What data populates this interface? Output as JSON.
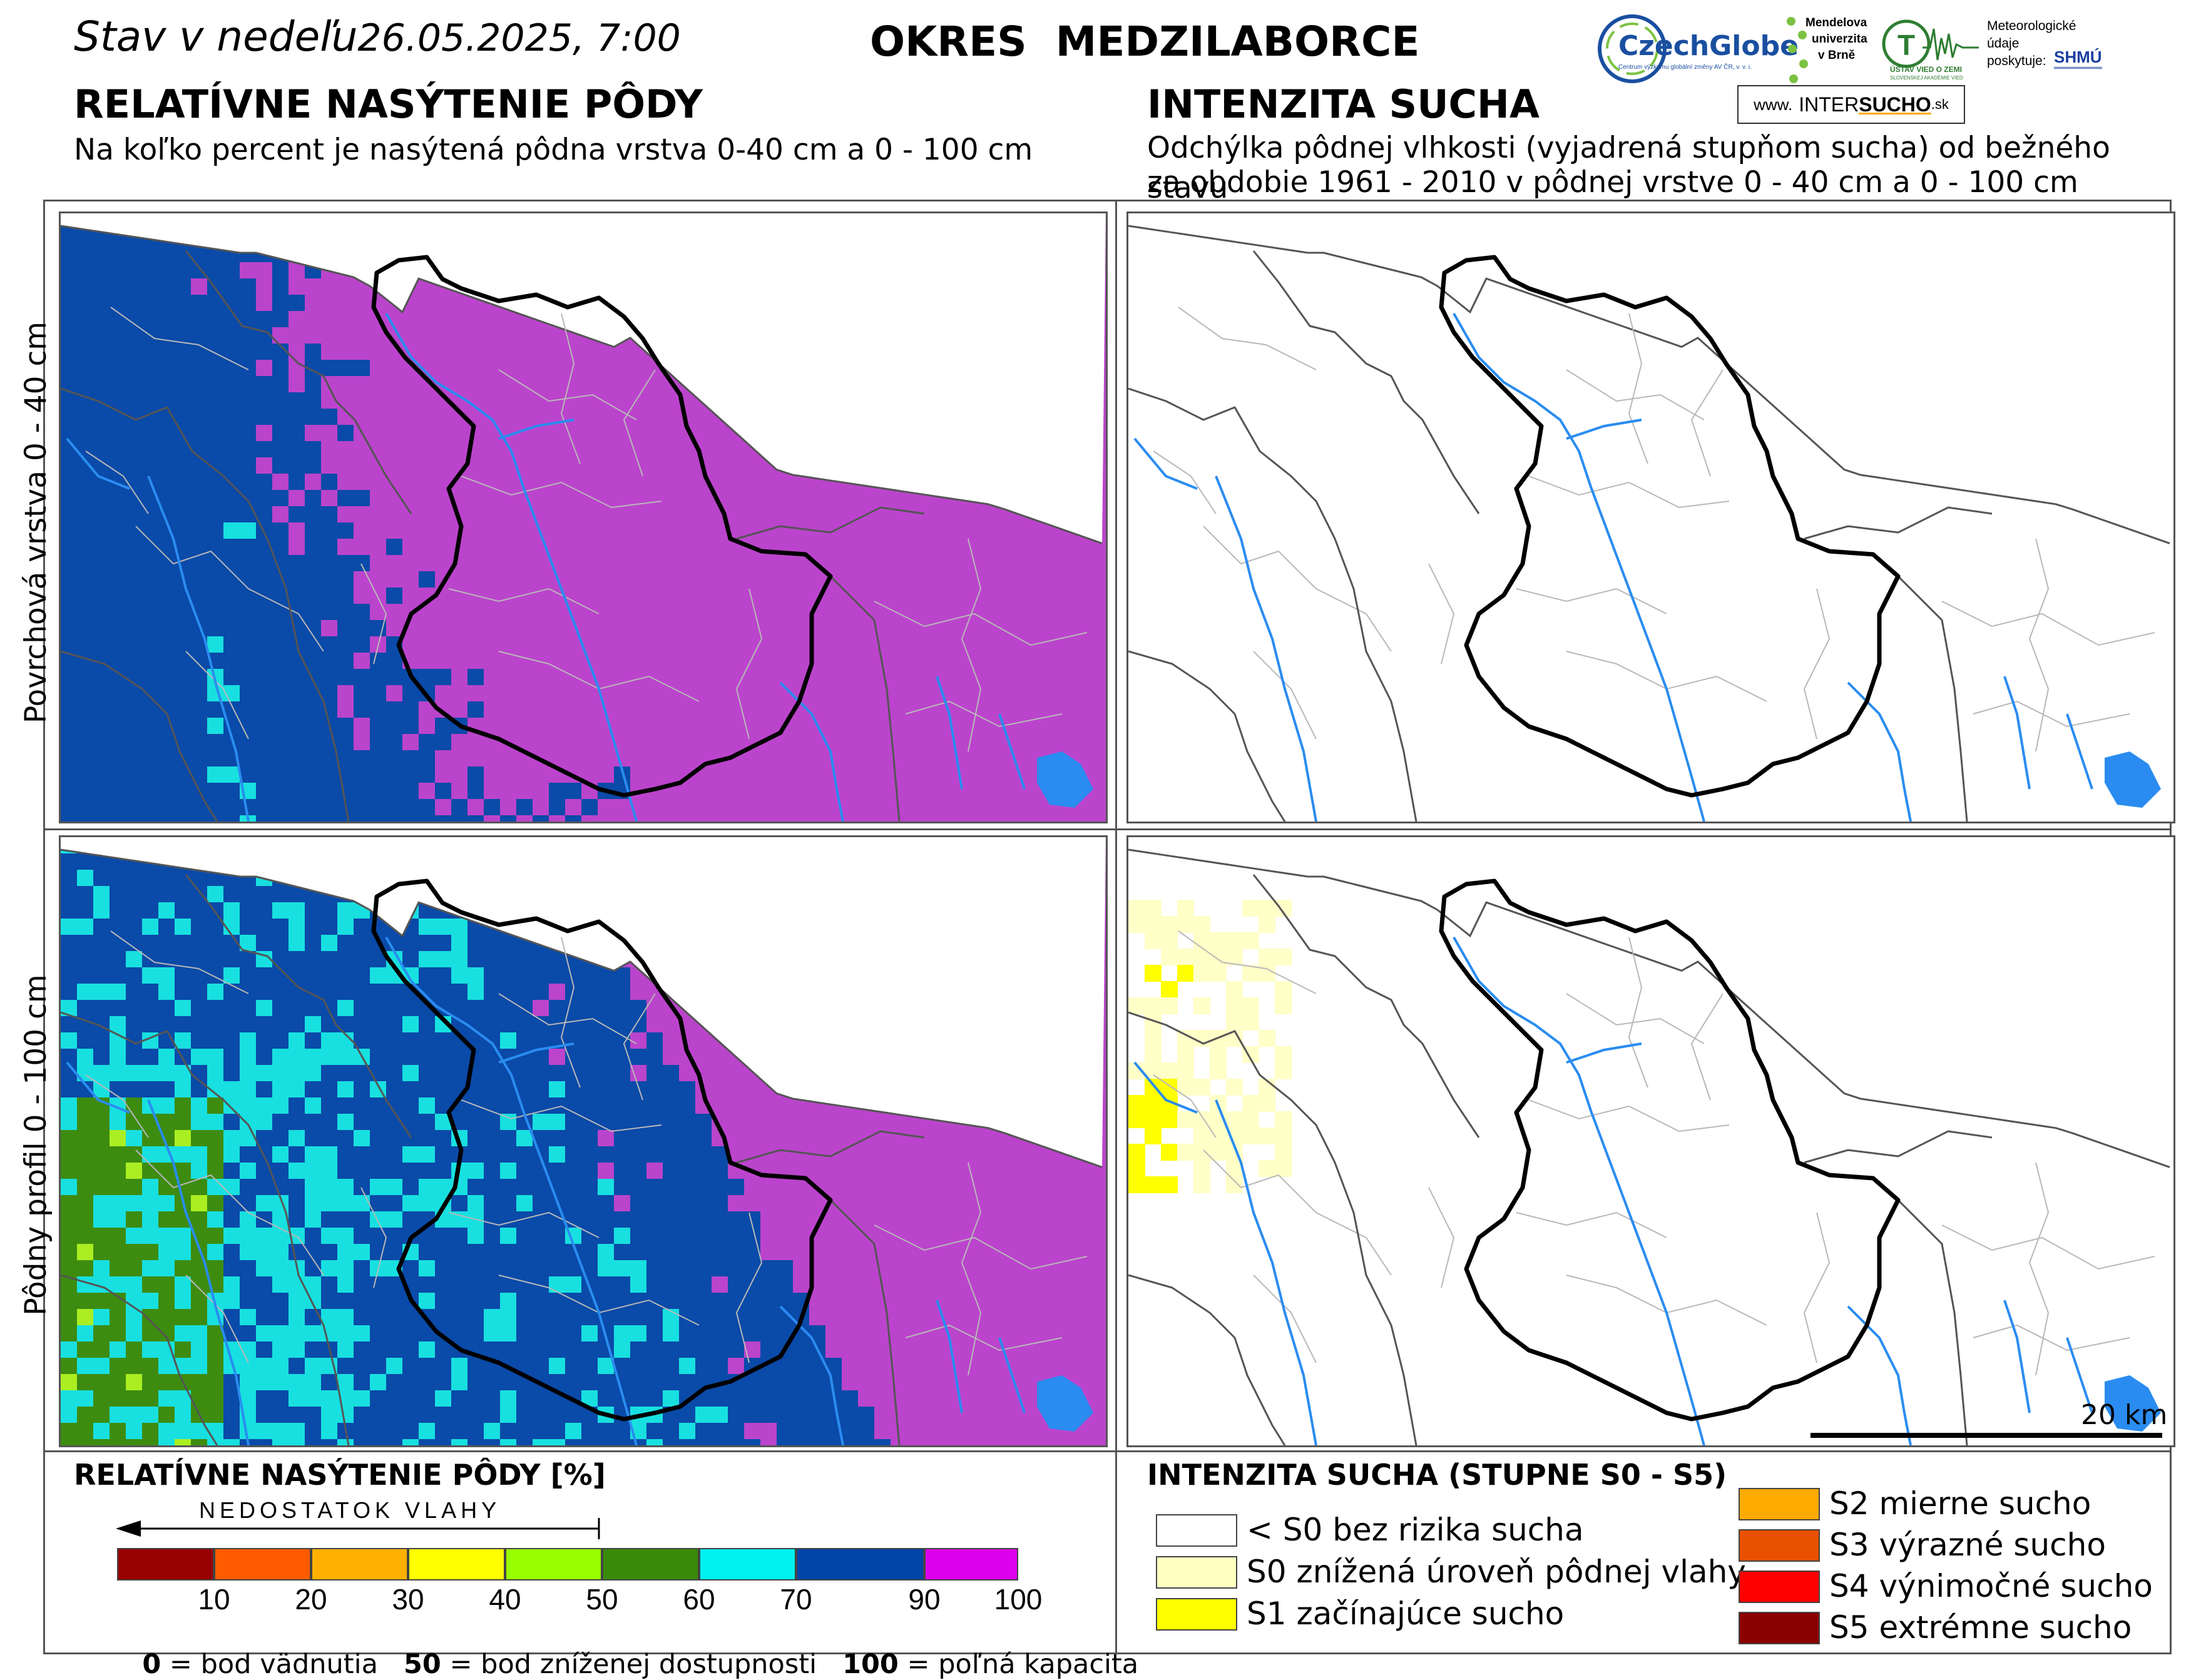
{
  "header": {
    "date_prefix": "Stav v nedeľu",
    "date_value": "26.05.2025, 7:00",
    "district": "OKRES  MEDZILABORCE",
    "left_title": "RELATÍVNE NASÝTENIE PÔDY",
    "left_subtitle": "Na koľko percent je nasýtená pôdna vrstva 0-40 cm a 0 - 100 cm",
    "right_title": "INTENZITA SUCHA",
    "right_subtitle_1": "Odchýlka pôdnej vlhkosti (vyjadrená stupňom sucha) od bežného stavu",
    "right_subtitle_2": "za obdobie 1961 - 2010 v pôdnej vrstve 0 - 40 cm a 0 - 100 cm"
  },
  "logos": {
    "czechglobe": "CzechGlobe",
    "czechglobe_sub": "Centrum výzkumu globální změny AV ČR, v. v. i.",
    "mendel_1": "Mendelova",
    "mendel_2": "univerzita",
    "mendel_3": "v Brně",
    "uvz": "ÚSTAV VIED O ZEMI",
    "uvz_sub": "SLOVENSKEJ AKADÉMIE VIED",
    "meteo_1": "Meteorologické",
    "meteo_2": "údaje",
    "meteo_3": "poskytuje:",
    "shmu": "SHMÚ",
    "www_prefix": "www.",
    "www_inter": "INTER",
    "www_sucho": "SUCHO",
    "www_suffix": ".sk"
  },
  "rows": {
    "top_label": "Povrchová vrstva 0 - 40 cm",
    "bottom_label": "Pôdny profil 0 - 100 cm"
  },
  "scalebar": {
    "label": "20 km"
  },
  "saturation_legend": {
    "title": "RELATÍVNE NASÝTENIE PÔDY [%]",
    "arrow_label": "NEDOSTATOK VLAHY",
    "classes": [
      {
        "from": 0,
        "to": 10,
        "color": "#990000"
      },
      {
        "from": 10,
        "to": 20,
        "color": "#ff5a00"
      },
      {
        "from": 20,
        "to": 30,
        "color": "#ffb000"
      },
      {
        "from": 30,
        "to": 40,
        "color": "#ffff00"
      },
      {
        "from": 40,
        "to": 50,
        "color": "#99ff00"
      },
      {
        "from": 50,
        "to": 60,
        "color": "#3a8a0a"
      },
      {
        "from": 60,
        "to": 70,
        "color": "#00f0f0"
      },
      {
        "from": 70,
        "to": 90,
        "color": "#0044aa"
      },
      {
        "from": 90,
        "to": 100,
        "color": "#dd00ee"
      }
    ],
    "ticks": [
      "10",
      "20",
      "30",
      "40",
      "50",
      "60",
      "70",
      "90",
      "100"
    ],
    "note_0": "0",
    "note_0_text": " = bod vädnutia",
    "note_50": "50",
    "note_50_text": " = bod zníženej dostupnosti",
    "note_100": "100",
    "note_100_text": " = poľná kapacita"
  },
  "drought_legend": {
    "title": "INTENZITA SUCHA (STUPNE S0 - S5)",
    "items": [
      {
        "label": "< S0 bez rizika sucha",
        "color": "#ffffff"
      },
      {
        "label": "S0 znížená úroveň pôdnej vlahy",
        "color": "#ffffc0"
      },
      {
        "label": "S1 začínajúce sucho",
        "color": "#ffff00"
      },
      {
        "label": "S2 mierne sucho",
        "color": "#ffaa00"
      },
      {
        "label": "S3 výrazné sucho",
        "color": "#e85000"
      },
      {
        "label": "S4 výnimočné sucho",
        "color": "#ff0000"
      },
      {
        "label": "S5 extrémne sucho",
        "color": "#8b0000"
      }
    ]
  },
  "map_colors": {
    "magenta": "#bb44cc",
    "blue": "#0a4aa8",
    "cyan": "#18e0e0",
    "green": "#3d8c10",
    "river": "#2a8cf0",
    "s0": "#ffffc8",
    "s1": "#ffff00"
  }
}
